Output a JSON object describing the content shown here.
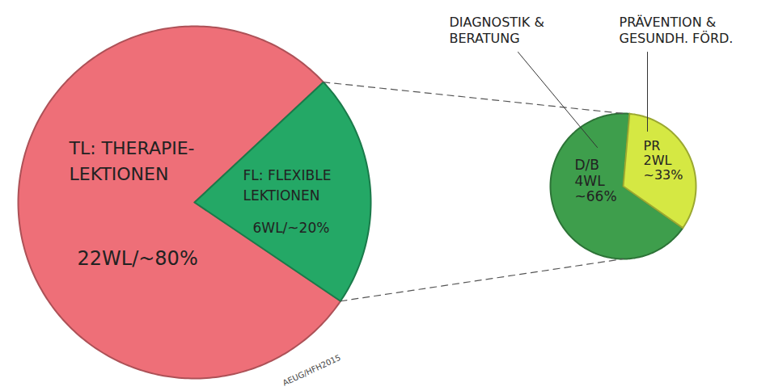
{
  "chart_data": [
    {
      "type": "pie",
      "categories": [
        "TL: THERAPIE-LEKTIONEN",
        "FL: FLEXIBLE LEKTIONEN"
      ],
      "values": [
        22,
        6
      ],
      "value_labels": [
        "22WL/~80%",
        "6WL/~20%"
      ],
      "colors": [
        "#ee6f78",
        "#24a866"
      ],
      "data_labels": true,
      "annotations": [
        "AEUG/HFH2015"
      ]
    },
    {
      "type": "pie",
      "categories": [
        "D/B",
        "PR"
      ],
      "values": [
        4,
        2
      ],
      "value_labels": [
        "4WL ~66%",
        "2WL ~33%"
      ],
      "colors": [
        "#3e9e4c",
        "#d5e843"
      ],
      "data_labels": true,
      "annotations": [
        "DIAGNOSTIK & BERATUNG",
        "PRÄVENTION & GESUNDH. FÖRD."
      ]
    }
  ]
}
